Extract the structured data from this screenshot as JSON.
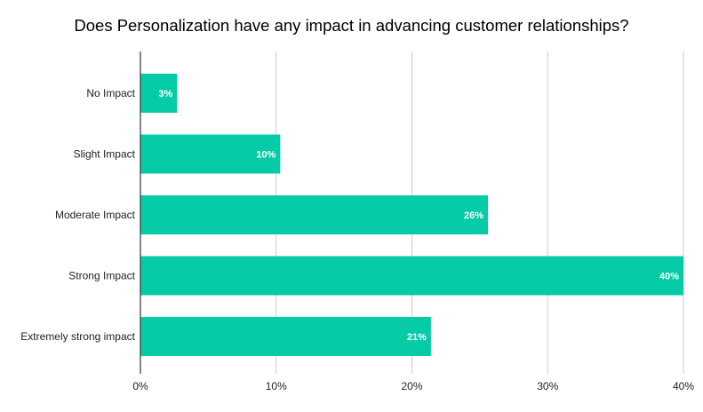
{
  "chart_data": {
    "type": "bar",
    "orientation": "horizontal",
    "title": "Does Personalization have any impact in advancing customer relationships?",
    "categories": [
      "No Impact",
      "Slight Impact",
      "Moderate Impact",
      "Strong Impact",
      "Extremely strong impact"
    ],
    "values": [
      2.7,
      10.3,
      25.6,
      40.0,
      21.4
    ],
    "data_labels": [
      "3%",
      "10%",
      "26%",
      "40%",
      "21%"
    ],
    "xlabel": "",
    "ylabel": "",
    "xlim": [
      0,
      40
    ],
    "xticks": [
      0,
      10,
      20,
      30,
      40
    ],
    "xtick_labels": [
      "0%",
      "10%",
      "20%",
      "30%",
      "40%"
    ],
    "grid": true,
    "legend": "none",
    "colors": {
      "bar": "#06cba7",
      "grid": "#cccccc",
      "axis": "#333333"
    }
  }
}
